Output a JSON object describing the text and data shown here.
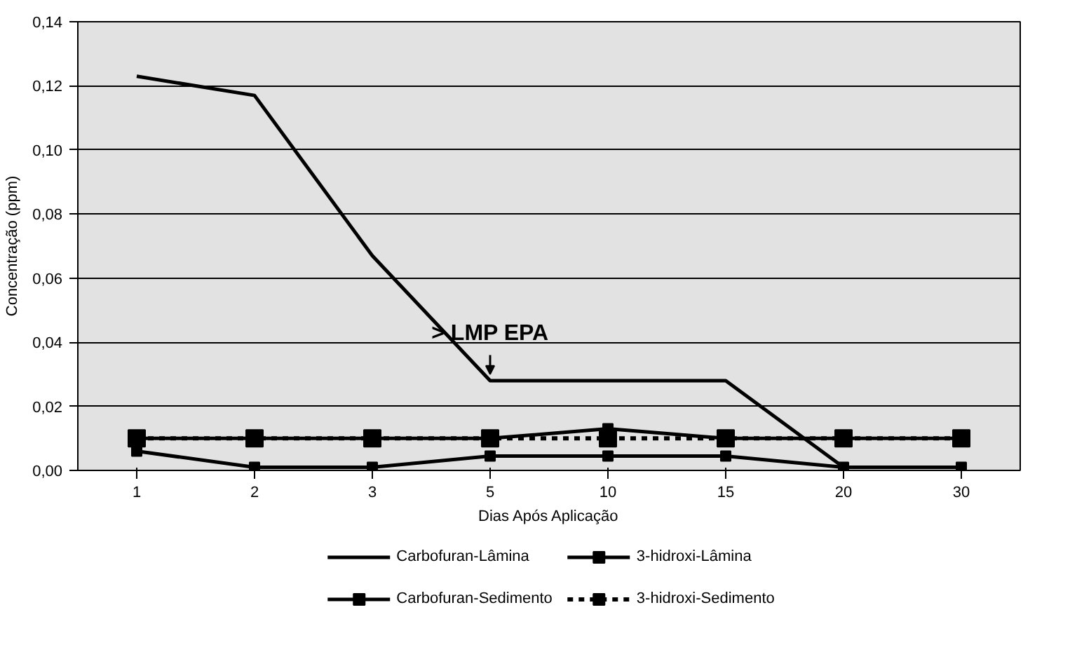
{
  "chart_data": {
    "type": "line",
    "xlabel": "Dias Após Aplicação",
    "ylabel": "Concentração (ppm)",
    "categories": [
      "1",
      "2",
      "3",
      "5",
      "10",
      "15",
      "20",
      "30"
    ],
    "ylim": [
      0,
      0.14
    ],
    "yticks": [
      {
        "value": 0,
        "label": "0,00"
      },
      {
        "value": 0.02,
        "label": "0,02"
      },
      {
        "value": 0.04,
        "label": "0,04"
      },
      {
        "value": 0.06,
        "label": "0,06"
      },
      {
        "value": 0.08,
        "label": "0,08"
      },
      {
        "value": 0.1,
        "label": "0,10"
      },
      {
        "value": 0.12,
        "label": "0,12"
      },
      {
        "value": 0.14,
        "label": "0,14"
      }
    ],
    "grid": "y",
    "legend": "bottom",
    "annotations": [
      {
        "text": "> LMP EPA",
        "x": "5",
        "y": 0.028
      }
    ],
    "series": [
      {
        "name": "Carbofuran-Lâmina",
        "color": "#000000",
        "marker": "none",
        "line_style": "solid",
        "values": [
          0.123,
          0.117,
          0.067,
          0.028,
          0.028,
          0.028,
          0.001,
          0.001
        ]
      },
      {
        "name": "3-hidroxi-Lâmina",
        "color": "#000000",
        "marker": "square",
        "line_style": "solid",
        "values": [
          0.006,
          0.001,
          0.001,
          0.0045,
          0.0045,
          0.0045,
          0.001,
          0.001
        ]
      },
      {
        "name": "Carbofuran-Sedimento",
        "color": "#000000",
        "marker": "square",
        "line_style": "solid",
        "values": [
          0.01,
          0.01,
          0.01,
          0.01,
          0.013,
          0.01,
          0.01,
          0.01
        ]
      },
      {
        "name": "3-hidroxi-Sedimento",
        "color": "#000000",
        "marker": "square",
        "line_style": "dashed",
        "values": [
          0.01,
          0.01,
          0.01,
          0.01,
          0.01,
          0.01,
          0.01,
          0.01
        ]
      }
    ]
  }
}
